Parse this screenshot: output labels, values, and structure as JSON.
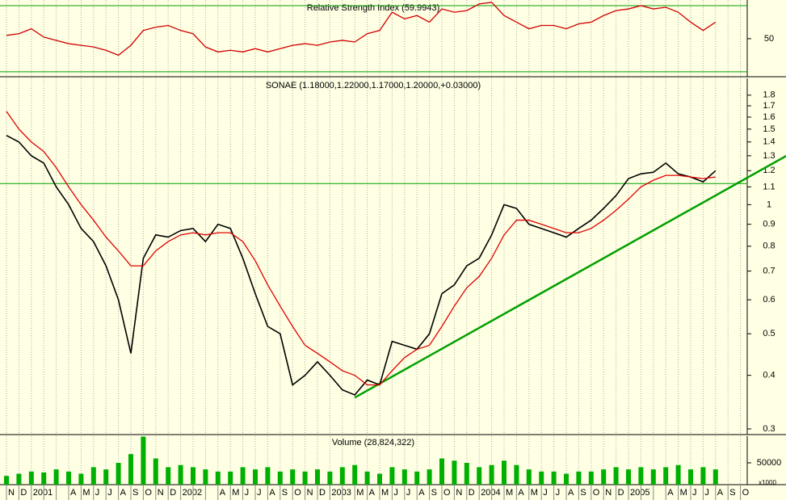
{
  "chart_data": [
    {
      "type": "line",
      "title": "Relative Strength Index (59.9943)",
      "ylim": [
        27,
        73.4
      ],
      "yticks": [
        50
      ],
      "hlines": [
        30,
        70
      ],
      "hline_color": "#00a000",
      "grid": true,
      "series": [
        {
          "color": "#d00000",
          "values": [
            52,
            53,
            56,
            51,
            49,
            47,
            46,
            45,
            43,
            40,
            46,
            55,
            57,
            58,
            55,
            53,
            45,
            42,
            43,
            42,
            44,
            42,
            44,
            46,
            47,
            46,
            48,
            49,
            48,
            53,
            55,
            66,
            62,
            64,
            60,
            68,
            66,
            67,
            71,
            72,
            64,
            60,
            56,
            58,
            58,
            56,
            59,
            60,
            64,
            67,
            68,
            70,
            68,
            69,
            66,
            60,
            55,
            60,
            null,
            null
          ]
        }
      ]
    },
    {
      "type": "line",
      "title": "SONAE (1.18000,1.22000,1.17000,1.20000,+0.03000)",
      "log_scale": true,
      "ylim": [
        0.291,
        1.97
      ],
      "yticks": [
        0.3,
        0.4,
        0.5,
        0.6,
        0.7,
        0.8,
        0.9,
        1.0,
        1.1,
        1.2,
        1.3,
        1.4,
        1.5,
        1.6,
        1.7,
        1.8
      ],
      "grid": true,
      "hlines": [
        1.12
      ],
      "hline_color": "#00a000",
      "trendline": {
        "x": [
          28,
          62.7
        ],
        "y": [
          0.355,
          1.3
        ],
        "color": "#00a000"
      },
      "series": [
        {
          "color": "#000000",
          "values": [
            1.45,
            1.4,
            1.3,
            1.25,
            1.1,
            1.0,
            0.88,
            0.82,
            0.72,
            0.6,
            0.45,
            0.75,
            0.85,
            0.84,
            0.87,
            0.88,
            0.82,
            0.9,
            0.88,
            0.75,
            0.62,
            0.52,
            0.5,
            0.38,
            0.4,
            0.43,
            0.4,
            0.37,
            0.36,
            0.39,
            0.38,
            0.48,
            0.47,
            0.46,
            0.5,
            0.62,
            0.65,
            0.72,
            0.75,
            0.85,
            1.0,
            0.98,
            0.9,
            0.88,
            0.86,
            0.84,
            0.88,
            0.92,
            0.98,
            1.05,
            1.15,
            1.18,
            1.19,
            1.25,
            1.18,
            1.16,
            1.13,
            1.2,
            null,
            null
          ]
        },
        {
          "color": "#e00000",
          "values": [
            1.65,
            1.5,
            1.4,
            1.33,
            1.22,
            1.1,
            1.0,
            0.92,
            0.84,
            0.78,
            0.72,
            0.72,
            0.78,
            0.82,
            0.85,
            0.86,
            0.85,
            0.86,
            0.86,
            0.82,
            0.74,
            0.65,
            0.58,
            0.52,
            0.47,
            0.45,
            0.43,
            0.41,
            0.4,
            0.38,
            0.38,
            0.41,
            0.44,
            0.46,
            0.47,
            0.52,
            0.58,
            0.64,
            0.68,
            0.75,
            0.85,
            0.92,
            0.92,
            0.9,
            0.88,
            0.86,
            0.86,
            0.88,
            0.92,
            0.97,
            1.03,
            1.1,
            1.14,
            1.17,
            1.17,
            1.16,
            1.15,
            1.16,
            null,
            null
          ]
        }
      ]
    },
    {
      "type": "bar",
      "title": "Volume (28,824,322)",
      "unit_label": "x1000",
      "ylim": [
        0,
        111000
      ],
      "yticks": [
        50000
      ],
      "grid": true,
      "color": "#00b000",
      "categories": [
        "N",
        "D",
        "2001",
        null,
        null,
        "A",
        "M",
        "J",
        "J",
        "A",
        "S",
        "O",
        "N",
        "D",
        "2002",
        null,
        null,
        "A",
        "M",
        "J",
        "J",
        "A",
        "S",
        "O",
        "N",
        "D",
        "2003",
        null,
        "M",
        "A",
        "M",
        "J",
        "J",
        "A",
        "S",
        "O",
        "N",
        "D",
        "2004",
        null,
        "M",
        "A",
        "M",
        "J",
        "J",
        "A",
        "S",
        "O",
        "N",
        "D",
        "2005",
        null,
        null,
        "A",
        "M",
        "J",
        "J",
        "A",
        "S",
        "O"
      ],
      "values": [
        20000,
        25000,
        30000,
        28000,
        35000,
        30000,
        25000,
        40000,
        35000,
        50000,
        70000,
        110000,
        60000,
        40000,
        45000,
        40000,
        35000,
        30000,
        30000,
        40000,
        35000,
        40000,
        30000,
        35000,
        30000,
        35000,
        30000,
        40000,
        45000,
        30000,
        25000,
        40000,
        35000,
        30000,
        35000,
        60000,
        55000,
        50000,
        40000,
        45000,
        55000,
        45000,
        35000,
        30000,
        30000,
        25000,
        30000,
        30000,
        35000,
        40000,
        35000,
        40000,
        35000,
        40000,
        45000,
        35000,
        40000,
        35000,
        null,
        null
      ]
    }
  ]
}
